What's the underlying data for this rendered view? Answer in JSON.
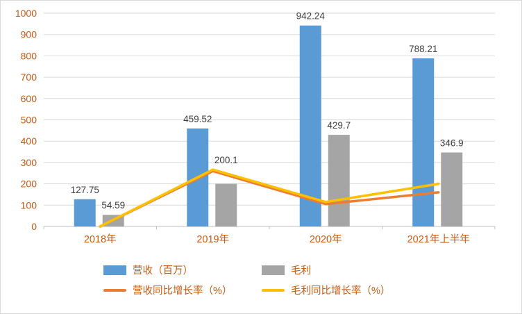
{
  "chart_data": {
    "type": "bar",
    "subtype": "combo-bar-line",
    "title": "",
    "categories": [
      "2018年",
      "2019年",
      "2020年",
      "2021年上半年"
    ],
    "bar_series": [
      {
        "name": "营收（百万）",
        "color": "#5B9BD5",
        "values": [
          127.75,
          459.52,
          942.24,
          788.21
        ],
        "labels": [
          "127.75",
          "459.52",
          "942.24",
          "788.21"
        ]
      },
      {
        "name": "毛利",
        "color": "#A5A5A5",
        "values": [
          54.59,
          200.1,
          429.7,
          346.9
        ],
        "labels": [
          "54.59",
          "200.1",
          "429.7",
          "346.9"
        ]
      }
    ],
    "line_series": [
      {
        "name": "营收同比增长率（%）",
        "color": "#ED7D31",
        "values": [
          0,
          259.7,
          105.1,
          160
        ]
      },
      {
        "name": "毛利同比增长率（%）",
        "color": "#FFC000",
        "values": [
          0,
          266.6,
          114.7,
          200
        ]
      }
    ],
    "y_axis": {
      "min": 0,
      "max": 1000,
      "step": 100,
      "tick_labels": [
        "0",
        "100",
        "200",
        "300",
        "400",
        "500",
        "600",
        "700",
        "800",
        "900",
        "1000"
      ]
    },
    "grid": true,
    "legend_position": "bottom",
    "colors": {
      "axis_text": "#C55A11",
      "data_label": "#404040",
      "gridline": "#D9D9D9",
      "axis_line": "#BFBFBF",
      "background": "#FFFFFF",
      "border": "#D9D9D9"
    }
  }
}
